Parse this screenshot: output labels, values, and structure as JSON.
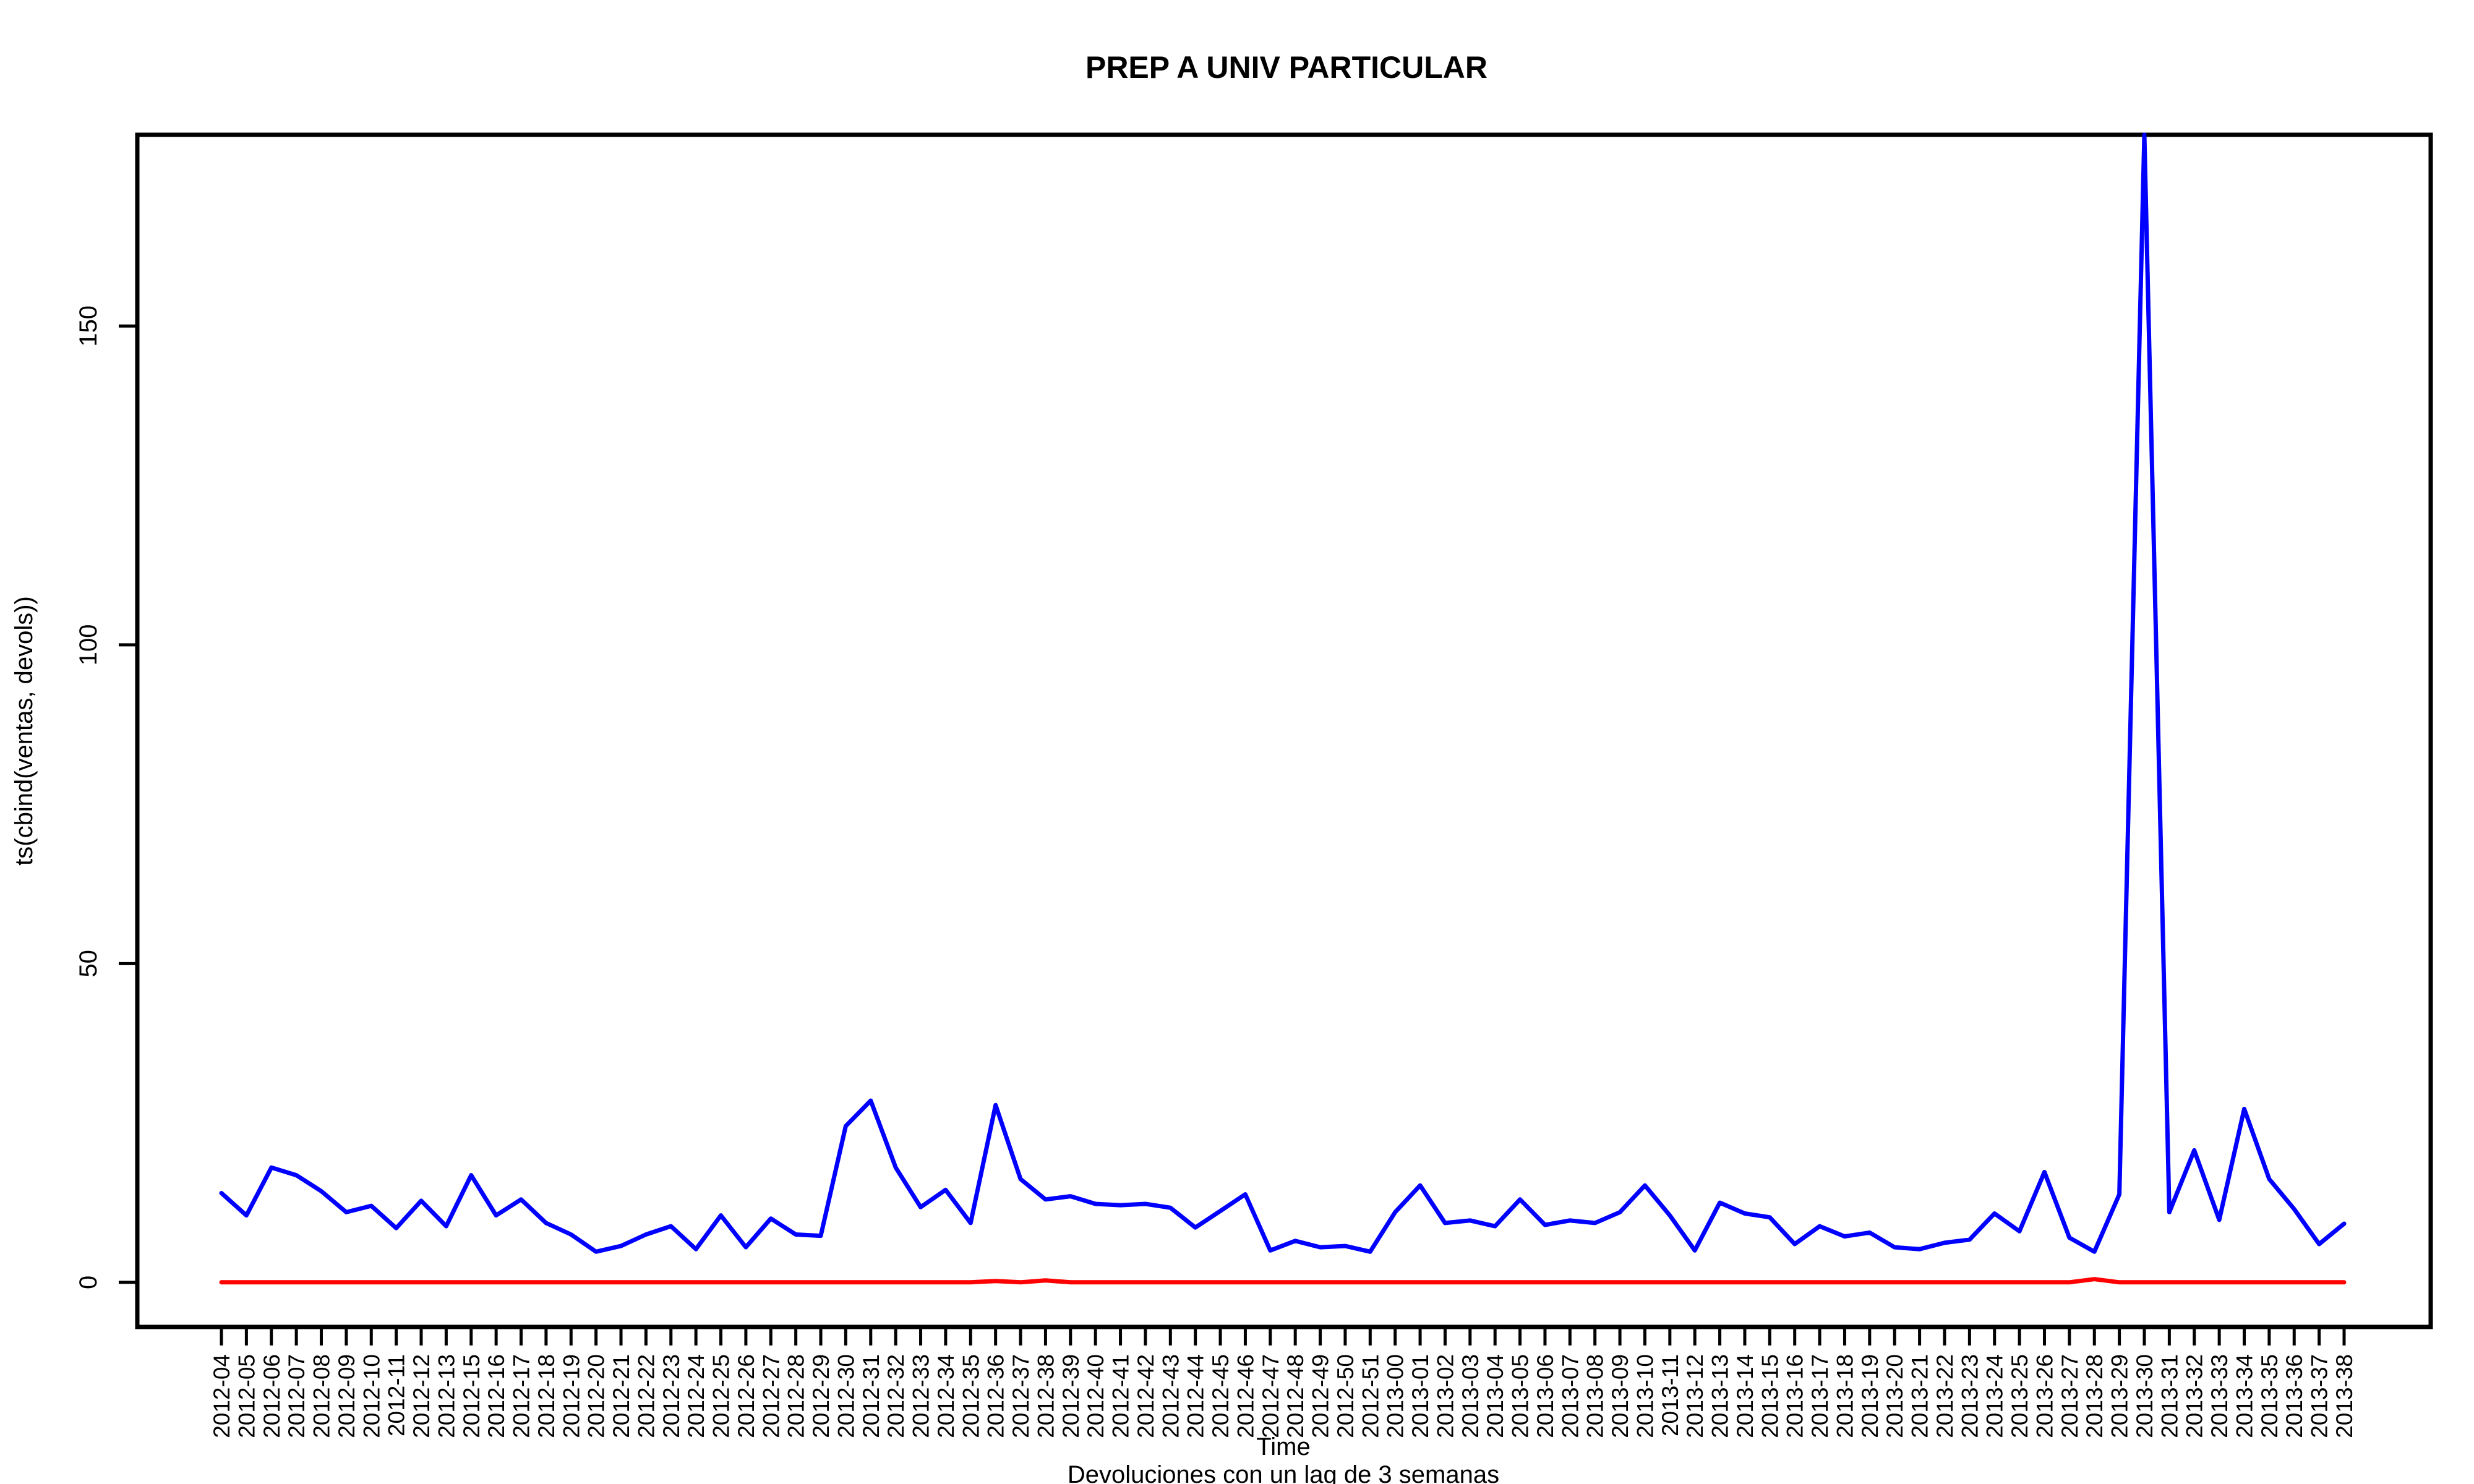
{
  "chart_data": {
    "type": "line",
    "title": "PREP A UNIV PARTICULAR",
    "xlabel": "Time",
    "ylabel": "ts(cbind(ventas, devols))",
    "subtitle": "Devoluciones con un lag de 3 semanas",
    "ylim": [
      -7,
      180
    ],
    "y_ticks": [
      0,
      50,
      100,
      150
    ],
    "grid": false,
    "categories": [
      "2012-04",
      "2012-05",
      "2012-06",
      "2012-07",
      "2012-08",
      "2012-09",
      "2012-10",
      "2012-11",
      "2012-12",
      "2012-13",
      "2012-15",
      "2012-16",
      "2012-17",
      "2012-18",
      "2012-19",
      "2012-20",
      "2012-21",
      "2012-22",
      "2012-23",
      "2012-24",
      "2012-25",
      "2012-26",
      "2012-27",
      "2012-28",
      "2012-29",
      "2012-30",
      "2012-31",
      "2012-32",
      "2012-33",
      "2012-34",
      "2012-35",
      "2012-36",
      "2012-37",
      "2012-38",
      "2012-39",
      "2012-40",
      "2012-41",
      "2012-42",
      "2012-43",
      "2012-44",
      "2012-45",
      "2012-46",
      "2012-47",
      "2012-48",
      "2012-49",
      "2012-50",
      "2012-51",
      "2013-00",
      "2013-01",
      "2013-02",
      "2013-03",
      "2013-04",
      "2013-05",
      "2013-06",
      "2013-07",
      "2013-08",
      "2013-09",
      "2013-10",
      "2013-11",
      "2013-12",
      "2013-13",
      "2013-14",
      "2013-15",
      "2013-16",
      "2013-17",
      "2013-18",
      "2013-19",
      "2013-20",
      "2013-21",
      "2013-22",
      "2013-23",
      "2013-24",
      "2013-25",
      "2013-26",
      "2013-27",
      "2013-28",
      "2013-29",
      "2013-30",
      "2013-31",
      "2013-32",
      "2013-33",
      "2013-34",
      "2013-35",
      "2013-36",
      "2013-37",
      "2013-38"
    ],
    "series": [
      {
        "color": "#0000ff",
        "values": [
          14,
          10.5,
          18,
          16.8,
          14.3,
          11,
          12,
          8.5,
          12.8,
          8.8,
          16.8,
          10.5,
          13,
          9.3,
          7.5,
          4.8,
          5.7,
          7.5,
          8.8,
          5.2,
          10.5,
          5.5,
          10,
          7.5,
          7.3,
          24.5,
          28.5,
          18,
          11.8,
          14.5,
          9.3,
          27.8,
          16.2,
          13,
          13.5,
          12.3,
          12.1,
          12.3,
          11.7,
          8.6,
          11.2,
          13.8,
          5,
          6.5,
          5.5,
          5.7,
          4.8,
          11,
          15.2,
          9.3,
          9.7,
          8.8,
          13,
          9,
          9.7,
          9.3,
          11,
          15.2,
          10.5,
          5,
          12.5,
          10.8,
          10.2,
          6,
          8.8,
          7.2,
          7.8,
          5.5,
          5.2,
          6.2,
          6.7,
          10.8,
          8,
          17.3,
          7,
          4.8,
          13.8,
          180,
          11,
          20.7,
          9.8,
          27.2,
          16.2,
          11.5,
          6,
          9.2
        ]
      },
      {
        "color": "#ff0000",
        "values": [
          0,
          0,
          0,
          0,
          0,
          0,
          0,
          0,
          0,
          0,
          0,
          0,
          0,
          0,
          0,
          0,
          0,
          0,
          0,
          0,
          0,
          0,
          0,
          0,
          0,
          0,
          0,
          0,
          0,
          0,
          0,
          0.2,
          0,
          0.3,
          0,
          0,
          0,
          0,
          0,
          0,
          0,
          0,
          0,
          0,
          0,
          0,
          0,
          0,
          0,
          0,
          0,
          0,
          0,
          0,
          0,
          0,
          0,
          0,
          0,
          0,
          0,
          0,
          0,
          0,
          0,
          0,
          0,
          0,
          0,
          0,
          0,
          0,
          0,
          0,
          0,
          0.5,
          0,
          0,
          0,
          0,
          0,
          0,
          0,
          0,
          0,
          0
        ]
      }
    ]
  }
}
